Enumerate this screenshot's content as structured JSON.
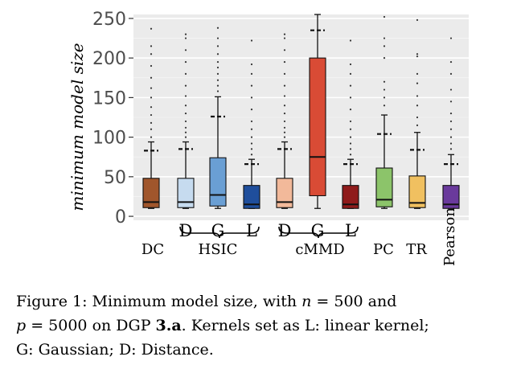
{
  "chart_data": {
    "type": "box",
    "ylabel": "minimum model size",
    "ylim": [
      -5,
      255
    ],
    "yticks": [
      0,
      50,
      100,
      150,
      200,
      250
    ],
    "grid": true,
    "groups": [
      {
        "name": "DC",
        "kernels": [
          ""
        ]
      },
      {
        "name": "HSIC",
        "kernels": [
          "D",
          "G",
          "L"
        ]
      },
      {
        "name": "cMMD",
        "kernels": [
          "D",
          "G",
          "L"
        ]
      },
      {
        "name": "PC",
        "kernels": [
          ""
        ]
      },
      {
        "name": "TR",
        "kernels": [
          ""
        ]
      },
      {
        "name": "Pearson",
        "kernels": [
          ""
        ]
      }
    ],
    "series": [
      {
        "group": "DC",
        "kernel": "",
        "color": "#a0562c",
        "q1": 11,
        "median": 18,
        "q3": 48,
        "whisker_low": 10,
        "whisker_high": 94,
        "mean": 83,
        "outliers": [
          100,
          110,
          118,
          128,
          138,
          150,
          162,
          175,
          190,
          205,
          215,
          237
        ]
      },
      {
        "group": "HSIC",
        "kernel": "D",
        "color": "#c6dbef",
        "q1": 11,
        "median": 18,
        "q3": 48,
        "whisker_low": 10,
        "whisker_high": 94,
        "mean": 85,
        "outliers": [
          100,
          106,
          112,
          120,
          130,
          140,
          152,
          165,
          180,
          195,
          210,
          225,
          230
        ]
      },
      {
        "group": "HSIC",
        "kernel": "G",
        "color": "#6a9fd4",
        "q1": 13,
        "median": 27,
        "q3": 74,
        "whisker_low": 10,
        "whisker_high": 151,
        "mean": 126,
        "outliers": [
          158,
          165,
          172,
          180,
          188,
          195,
          205,
          215,
          225,
          238
        ]
      },
      {
        "group": "HSIC",
        "kernel": "L",
        "color": "#1f4e9c",
        "q1": 10,
        "median": 15,
        "q3": 39,
        "whisker_low": 10,
        "whisker_high": 72,
        "mean": 66,
        "outliers": [
          78,
          85,
          92,
          100,
          110,
          120,
          135,
          150,
          165,
          180,
          192,
          222
        ]
      },
      {
        "group": "cMMD",
        "kernel": "D",
        "color": "#f2b99a",
        "q1": 11,
        "median": 18,
        "q3": 48,
        "whisker_low": 10,
        "whisker_high": 94,
        "mean": 85,
        "outliers": [
          100,
          106,
          112,
          120,
          130,
          140,
          152,
          165,
          180,
          195,
          210,
          225,
          230
        ]
      },
      {
        "group": "cMMD",
        "kernel": "G",
        "color": "#d94b35",
        "q1": 26,
        "median": 75,
        "q3": 200,
        "whisker_low": 10,
        "whisker_high": 255,
        "mean": 235,
        "outliers": [
          262
        ]
      },
      {
        "group": "cMMD",
        "kernel": "L",
        "color": "#8f1b1b",
        "q1": 10,
        "median": 15,
        "q3": 39,
        "whisker_low": 10,
        "whisker_high": 72,
        "mean": 66,
        "outliers": [
          78,
          85,
          92,
          100,
          110,
          120,
          135,
          150,
          165,
          180,
          192,
          222
        ]
      },
      {
        "group": "PC",
        "kernel": "",
        "color": "#8cc46a",
        "q1": 12,
        "median": 21,
        "q3": 61,
        "whisker_low": 10,
        "whisker_high": 128,
        "mean": 104,
        "outliers": [
          140,
          150,
          160,
          170,
          200,
          215,
          225,
          252
        ]
      },
      {
        "group": "TR",
        "kernel": "",
        "color": "#f0c060",
        "q1": 11,
        "median": 17,
        "q3": 51,
        "whisker_low": 10,
        "whisker_high": 106,
        "mean": 84,
        "outliers": [
          115,
          125,
          140,
          152,
          168,
          180,
          202,
          205,
          248
        ]
      },
      {
        "group": "Pearson",
        "kernel": "",
        "color": "#6a3a9c",
        "q1": 10,
        "median": 15,
        "q3": 39,
        "whisker_low": 10,
        "whisker_high": 78,
        "mean": 66,
        "outliers": [
          85,
          92,
          100,
          110,
          120,
          130,
          145,
          160,
          180,
          195,
          225
        ]
      }
    ]
  },
  "caption": {
    "prefix": "Figure 1:  Minimum model size, with ",
    "n_var": "n",
    "n_eq": " = 500 and",
    "p_var": "p",
    "p_eq": " = 5000 on DGP ",
    "dgp": "3.a",
    "line2_rest": ". Kernels set as L: linear kernel;",
    "line3": "G: Gaussian; D: Distance."
  }
}
